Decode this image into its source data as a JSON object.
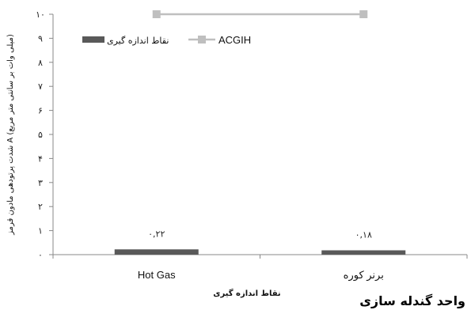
{
  "chart_data": {
    "type": "bar",
    "title": "واحد گندله سازی",
    "xlabel": "نقاط اندازه گیری",
    "ylabel": "شدت پرتودهی مادون قرمز A (میلی وات بر سانتی متر مربع)",
    "categories": [
      "Hot Gas",
      "برنر کوره"
    ],
    "ylim": [
      0,
      10
    ],
    "yticks": [
      0,
      1,
      2,
      3,
      4,
      5,
      6,
      7,
      8,
      9,
      10
    ],
    "ytick_labels": [
      "۰",
      "۱",
      "۲",
      "۳",
      "۴",
      "۵",
      "۶",
      "۷",
      "۸",
      "۹",
      "۱۰"
    ],
    "series": [
      {
        "name": "نقاط اندازه گیری",
        "kind": "bar",
        "color": "#595959",
        "values": [
          0.22,
          0.18
        ],
        "value_labels": [
          "۰,۲۲",
          "۰,۱۸"
        ]
      },
      {
        "name": "ACGIH",
        "kind": "line",
        "color": "#bfbfbf",
        "values": [
          10,
          10
        ]
      }
    ],
    "legend": "top-left",
    "grid": false
  }
}
